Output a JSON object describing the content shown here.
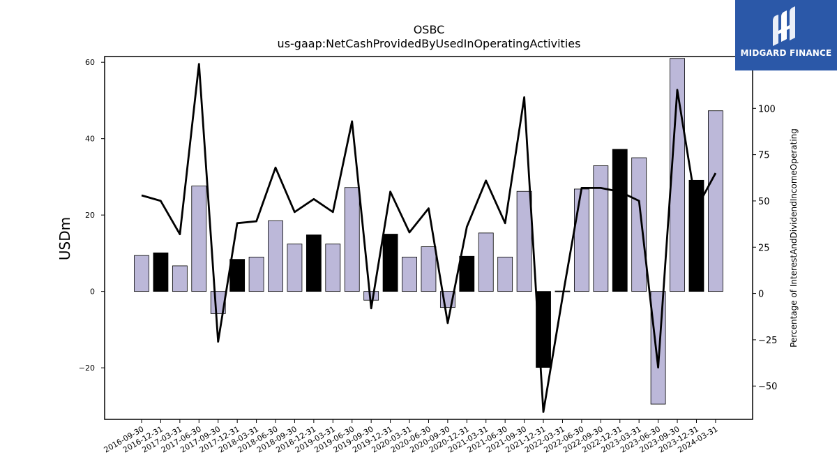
{
  "chart_data": {
    "type": "bar",
    "title": "OSBC",
    "subtitle": "us-gaap:NetCashProvidedByUsedInOperatingActivities",
    "ylabel": "USDm",
    "y2label": "Percentage of InterestAndDividendIncomeOperating",
    "ylim": [
      -33.5,
      61.5
    ],
    "y2lim": [
      -68,
      128
    ],
    "yticks": [
      -20,
      0,
      20,
      40,
      60
    ],
    "y2ticks": [
      -50,
      -25,
      0,
      25,
      50,
      75,
      100
    ],
    "categories": [
      "2016-09-30",
      "2016-12-31",
      "2017-03-31",
      "2017-06-30",
      "2017-09-30",
      "2017-12-31",
      "2018-03-31",
      "2018-06-30",
      "2018-09-30",
      "2018-12-31",
      "2019-03-31",
      "2019-06-30",
      "2019-09-30",
      "2019-12-31",
      "2020-03-31",
      "2020-06-30",
      "2020-09-30",
      "2020-12-31",
      "2021-03-31",
      "2021-06-30",
      "2021-09-30",
      "2021-12-31",
      "2022-03-31",
      "2022-06-30",
      "2022-09-30",
      "2022-12-31",
      "2023-03-31",
      "2023-06-30",
      "2023-09-30",
      "2023-12-31",
      "2024-03-31"
    ],
    "series": [
      {
        "type": "bar",
        "values": [
          9.4,
          10.1,
          6.7,
          27.6,
          -5.8,
          8.4,
          9.0,
          18.5,
          12.4,
          14.8,
          12.4,
          27.2,
          -2.3,
          15.0,
          9.0,
          11.7,
          -4.2,
          9.2,
          15.3,
          9.0,
          26.2,
          -19.9,
          0.1,
          26.8,
          32.9,
          37.2,
          35.0,
          -29.5,
          61.0,
          29.1,
          47.3
        ],
        "highlight": [
          false,
          true,
          false,
          false,
          false,
          true,
          false,
          false,
          false,
          true,
          false,
          false,
          false,
          true,
          false,
          false,
          false,
          true,
          false,
          false,
          false,
          true,
          true,
          false,
          false,
          true,
          false,
          false,
          false,
          true,
          false
        ]
      },
      {
        "type": "line",
        "axis": "right",
        "values": [
          53,
          50,
          32,
          124,
          -26,
          38,
          39,
          68,
          44,
          51,
          44,
          93,
          -8,
          55,
          33,
          46,
          -16,
          36,
          61,
          38,
          106,
          -64,
          -2,
          57,
          57,
          55,
          50,
          -40,
          110,
          46,
          65
        ]
      }
    ],
    "colors": {
      "bar": "#bcb8d9",
      "bar_highlight": "#000000",
      "line": "#000000"
    },
    "grid": false
  },
  "logo": {
    "text": "MIDGARD FINANCE",
    "background": "#2b58a8"
  }
}
